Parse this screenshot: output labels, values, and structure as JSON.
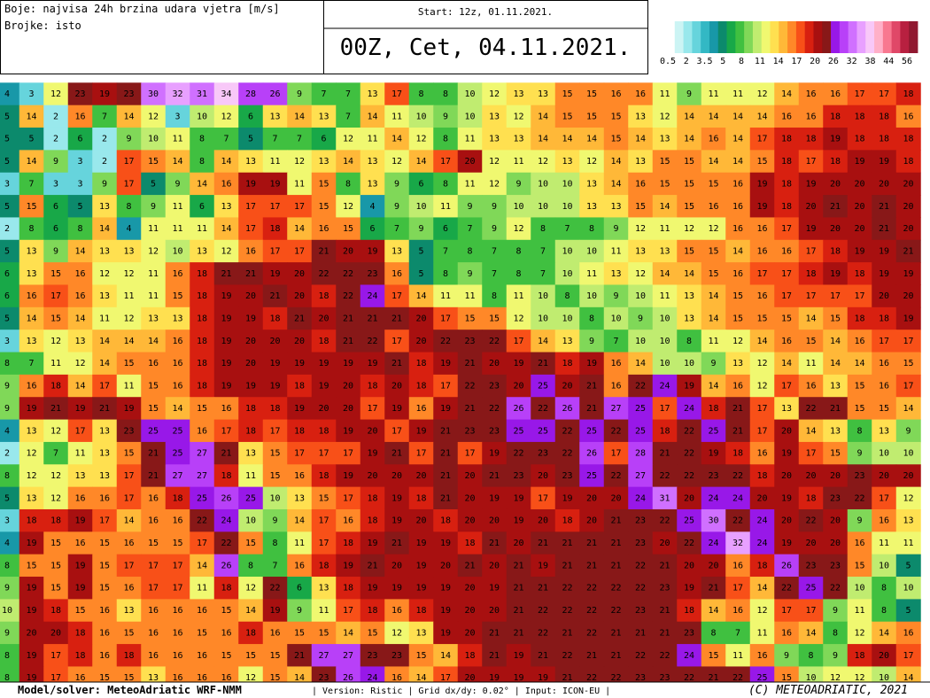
{
  "header": {
    "description": [
      "Boje: najvisa 24h brzina udara vjetra [m/s]",
      "Brojke: isto"
    ],
    "start": "Start: 12z, 01.11.2021.",
    "title": "00Z, Cet, 04.11.2021."
  },
  "legend": {
    "labels": [
      0.5,
      2,
      3.5,
      5,
      8,
      11,
      14,
      17,
      20,
      26,
      32,
      38,
      44,
      56
    ],
    "colors": [
      "#ffffff",
      "#ccf4f4",
      "#99e8ec",
      "#66d4dc",
      "#33b8c4",
      "#1898a8",
      "#0c8a6c",
      "#18a848",
      "#40c040",
      "#80d858",
      "#c0ec70",
      "#f0f870",
      "#ffe050",
      "#ffb838",
      "#ff8828",
      "#f85018",
      "#d82010",
      "#a81010",
      "#881818",
      "#9818e8",
      "#b840f8",
      "#d070ff",
      "#e8a0ff",
      "#f8c8f8",
      "#ffb0c8",
      "#f87890",
      "#e04868",
      "#b82040",
      "#901830"
    ]
  },
  "map": {
    "grid": [
      [
        4,
        3,
        12,
        23,
        19,
        23,
        30,
        32,
        31,
        34,
        28,
        26,
        9,
        7,
        7,
        13,
        17,
        8,
        8,
        10,
        12,
        13,
        13,
        15,
        15,
        16,
        16,
        11,
        9,
        11,
        11,
        12,
        14,
        16,
        16,
        17,
        17,
        18
      ],
      [
        5,
        14,
        2,
        16,
        7,
        14,
        12,
        3,
        10,
        12,
        6,
        13,
        14,
        13,
        7,
        14,
        11,
        10,
        9,
        10,
        13,
        12,
        14,
        15,
        15,
        15,
        13,
        12,
        14,
        14,
        14,
        14,
        16,
        16,
        18,
        18,
        18,
        16
      ],
      [
        5,
        5,
        2,
        6,
        2,
        9,
        10,
        11,
        8,
        7,
        5,
        7,
        7,
        6,
        12,
        11,
        14,
        12,
        8,
        11,
        13,
        13,
        14,
        14,
        14,
        15,
        14,
        13,
        14,
        16,
        14,
        17,
        18,
        18,
        19,
        18,
        18,
        18
      ],
      [
        5,
        14,
        9,
        3,
        2,
        17,
        15,
        14,
        8,
        14,
        13,
        11,
        12,
        13,
        14,
        13,
        12,
        14,
        17,
        20,
        12,
        11,
        12,
        13,
        12,
        14,
        13,
        15,
        15,
        14,
        14,
        15,
        18,
        17,
        18,
        19,
        19,
        18
      ],
      [
        3,
        7,
        3,
        3,
        9,
        17,
        5,
        9,
        14,
        16,
        19,
        19,
        11,
        15,
        8,
        13,
        9,
        6,
        8,
        11,
        12,
        9,
        10,
        10,
        13,
        14,
        16,
        15,
        15,
        15,
        16,
        19,
        18,
        19,
        20,
        20,
        20,
        20
      ],
      [
        5,
        15,
        6,
        5,
        13,
        8,
        9,
        11,
        6,
        13,
        17,
        17,
        17,
        15,
        12,
        4,
        9,
        10,
        11,
        9,
        9,
        10,
        10,
        10,
        13,
        13,
        15,
        14,
        15,
        16,
        16,
        19,
        18,
        20,
        21,
        20,
        21,
        20
      ],
      [
        2,
        8,
        6,
        8,
        14,
        4,
        11,
        11,
        11,
        14,
        17,
        18,
        14,
        16,
        15,
        6,
        7,
        9,
        6,
        7,
        9,
        12,
        8,
        7,
        8,
        9,
        12,
        11,
        12,
        12,
        16,
        16,
        17,
        19,
        20,
        20,
        21,
        20
      ],
      [
        5,
        13,
        9,
        14,
        13,
        13,
        12,
        10,
        13,
        12,
        16,
        17,
        17,
        21,
        20,
        19,
        13,
        5,
        7,
        8,
        7,
        8,
        7,
        10,
        10,
        11,
        13,
        13,
        15,
        15,
        14,
        16,
        16,
        17,
        18,
        19,
        19,
        21
      ],
      [
        6,
        13,
        15,
        16,
        12,
        12,
        11,
        16,
        18,
        21,
        21,
        19,
        20,
        22,
        22,
        23,
        16,
        5,
        8,
        9,
        7,
        8,
        7,
        10,
        11,
        13,
        12,
        14,
        14,
        15,
        16,
        17,
        17,
        18,
        19,
        18,
        19,
        19
      ],
      [
        6,
        16,
        17,
        16,
        13,
        11,
        11,
        15,
        18,
        19,
        20,
        21,
        20,
        18,
        22,
        24,
        17,
        14,
        11,
        11,
        8,
        11,
        10,
        8,
        10,
        9,
        10,
        11,
        13,
        14,
        15,
        16,
        17,
        17,
        17,
        17,
        20,
        20
      ],
      [
        5,
        14,
        15,
        14,
        11,
        12,
        13,
        13,
        18,
        19,
        19,
        18,
        21,
        20,
        21,
        21,
        21,
        20,
        17,
        15,
        15,
        12,
        10,
        10,
        8,
        10,
        9,
        10,
        13,
        14,
        15,
        15,
        15,
        14,
        15,
        18,
        18,
        19
      ],
      [
        3,
        13,
        12,
        13,
        14,
        14,
        14,
        16,
        18,
        19,
        20,
        20,
        20,
        18,
        21,
        22,
        17,
        20,
        22,
        23,
        22,
        17,
        14,
        13,
        9,
        7,
        10,
        10,
        8,
        11,
        12,
        14,
        16,
        15,
        14,
        16,
        17,
        17
      ],
      [
        8,
        7,
        11,
        12,
        14,
        15,
        16,
        16,
        18,
        19,
        20,
        19,
        19,
        19,
        19,
        19,
        21,
        18,
        19,
        21,
        20,
        19,
        21,
        18,
        19,
        16,
        14,
        10,
        10,
        9,
        13,
        12,
        14,
        11,
        14,
        14,
        16,
        15
      ],
      [
        9,
        16,
        18,
        14,
        17,
        11,
        15,
        16,
        18,
        19,
        19,
        19,
        18,
        19,
        20,
        18,
        20,
        18,
        17,
        22,
        23,
        20,
        25,
        20,
        21,
        16,
        22,
        24,
        19,
        14,
        16,
        12,
        17,
        16,
        13,
        15,
        16,
        17
      ],
      [
        9,
        19,
        21,
        19,
        21,
        19,
        15,
        14,
        15,
        16,
        18,
        18,
        19,
        20,
        20,
        17,
        19,
        16,
        19,
        21,
        22,
        26,
        22,
        26,
        21,
        27,
        25,
        17,
        24,
        18,
        21,
        17,
        13,
        22,
        21,
        15,
        15,
        14
      ],
      [
        4,
        13,
        12,
        17,
        13,
        23,
        25,
        25,
        16,
        17,
        18,
        17,
        18,
        18,
        19,
        20,
        17,
        19,
        21,
        23,
        23,
        25,
        25,
        22,
        25,
        22,
        25,
        18,
        22,
        25,
        21,
        17,
        20,
        14,
        13,
        8,
        13,
        9
      ],
      [
        2,
        12,
        7,
        11,
        13,
        15,
        21,
        25,
        27,
        21,
        13,
        15,
        17,
        17,
        17,
        19,
        21,
        17,
        21,
        17,
        19,
        22,
        23,
        22,
        26,
        17,
        28,
        21,
        22,
        19,
        18,
        16,
        19,
        17,
        15,
        9,
        10,
        10
      ],
      [
        8,
        12,
        12,
        13,
        13,
        17,
        21,
        27,
        27,
        18,
        11,
        15,
        16,
        18,
        19,
        20,
        20,
        20,
        21,
        20,
        21,
        23,
        20,
        23,
        25,
        22,
        27,
        22,
        22,
        23,
        22,
        18,
        20,
        20,
        20,
        23,
        20,
        20
      ],
      [
        5,
        13,
        12,
        16,
        16,
        17,
        16,
        18,
        25,
        26,
        25,
        10,
        13,
        15,
        17,
        18,
        19,
        18,
        21,
        20,
        19,
        19,
        17,
        19,
        20,
        20,
        24,
        31,
        20,
        24,
        24,
        20,
        19,
        18,
        23,
        22,
        17,
        12
      ],
      [
        3,
        18,
        18,
        19,
        17,
        14,
        16,
        16,
        22,
        24,
        10,
        9,
        14,
        17,
        16,
        18,
        19,
        20,
        18,
        20,
        20,
        19,
        20,
        18,
        20,
        21,
        23,
        22,
        25,
        30,
        22,
        24,
        20,
        22,
        20,
        9,
        16,
        13
      ],
      [
        4,
        19,
        15,
        16,
        15,
        16,
        15,
        15,
        17,
        22,
        15,
        8,
        11,
        17,
        18,
        19,
        21,
        19,
        19,
        18,
        21,
        20,
        21,
        21,
        21,
        21,
        23,
        20,
        22,
        24,
        32,
        24,
        19,
        20,
        20,
        16,
        11,
        11
      ],
      [
        8,
        15,
        15,
        19,
        15,
        17,
        17,
        17,
        14,
        26,
        8,
        7,
        16,
        18,
        19,
        21,
        20,
        19,
        20,
        21,
        20,
        21,
        19,
        21,
        21,
        21,
        22,
        21,
        20,
        20,
        16,
        18,
        26,
        23,
        23,
        15,
        10,
        5
      ],
      [
        9,
        19,
        15,
        19,
        15,
        16,
        17,
        17,
        11,
        18,
        12,
        22,
        6,
        13,
        18,
        19,
        19,
        19,
        19,
        20,
        19,
        21,
        21,
        22,
        22,
        22,
        22,
        23,
        19,
        21,
        17,
        14,
        22,
        25,
        22,
        10,
        8,
        10
      ],
      [
        10,
        19,
        18,
        15,
        16,
        13,
        16,
        16,
        16,
        15,
        14,
        19,
        9,
        11,
        17,
        18,
        16,
        18,
        19,
        20,
        20,
        21,
        22,
        22,
        22,
        22,
        23,
        21,
        18,
        14,
        16,
        12,
        17,
        17,
        9,
        11,
        8,
        5
      ],
      [
        9,
        20,
        20,
        18,
        16,
        15,
        16,
        16,
        15,
        16,
        18,
        16,
        15,
        15,
        14,
        15,
        12,
        13,
        19,
        20,
        21,
        21,
        22,
        21,
        22,
        21,
        21,
        21,
        23,
        8,
        7,
        11,
        16,
        14,
        8,
        12,
        14,
        16
      ],
      [
        8,
        19,
        17,
        18,
        16,
        18,
        16,
        16,
        16,
        15,
        15,
        15,
        21,
        27,
        27,
        23,
        23,
        15,
        14,
        18,
        21,
        19,
        21,
        22,
        21,
        21,
        22,
        22,
        24,
        15,
        11,
        16,
        9,
        8,
        9,
        18,
        20,
        17
      ],
      [
        8,
        19,
        17,
        16,
        15,
        15,
        13,
        16,
        16,
        16,
        12,
        15,
        14,
        23,
        26,
        24,
        16,
        14,
        17,
        20,
        19,
        19,
        19,
        21,
        22,
        22,
        23,
        23,
        22,
        21,
        22,
        25,
        15,
        10,
        12,
        12,
        10,
        14
      ]
    ]
  },
  "footer": {
    "model": "Model/solver: MeteoAdriatic WRF-NMM",
    "info": "| Version: Ristic | Grid dx/dy: 0.02° | Input: ICON-EU |",
    "copyright": "(C) METEOADRIATIC, 2021"
  }
}
